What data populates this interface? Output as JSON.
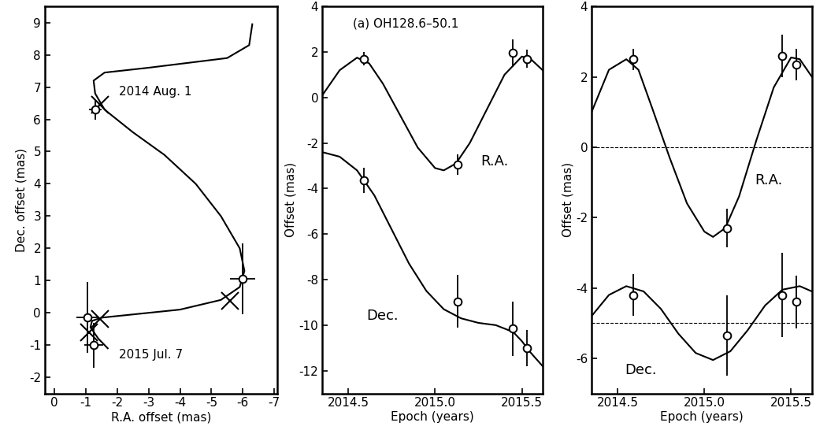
{
  "chart_data": [
    {
      "type": "scatter",
      "x_label": "R.A. offset (mas)",
      "y_label": "Dec. offset (mas)",
      "xlim": [
        0.3,
        -7.1
      ],
      "ylim": [
        -2.5,
        9.5
      ],
      "xticks": [
        0,
        -1,
        -2,
        -3,
        -4,
        -5,
        -6,
        -7
      ],
      "yticks": [
        -2,
        -1,
        0,
        1,
        2,
        3,
        4,
        5,
        6,
        7,
        8,
        9
      ],
      "annotations": [
        "2014 Aug. 1",
        "2015 Jul. 7"
      ],
      "series": [
        {
          "type": "line",
          "color": "#000000",
          "line_style": "solid",
          "x": [
            -6.3,
            -6.2,
            -5.5,
            -3.0,
            -1.6,
            -1.25,
            -1.3,
            -1.6,
            -2.5,
            -3.5,
            -4.5,
            -5.3,
            -5.9,
            -6.05,
            -5.9,
            -5.3,
            -4.0,
            -2.5,
            -1.5,
            -1.2,
            -1.15,
            -1.4,
            -1.7
          ],
          "values": [
            8.95,
            8.3,
            7.9,
            7.6,
            7.45,
            7.2,
            6.8,
            6.3,
            5.6,
            4.9,
            4.0,
            3.0,
            2.0,
            1.3,
            0.8,
            0.4,
            0.1,
            -0.05,
            -0.15,
            -0.25,
            -0.45,
            -0.8,
            -1.1
          ]
        },
        {
          "type": "scatter",
          "color": "#000000",
          "marker": "o",
          "x": [
            -1.3,
            -6.0,
            -1.05,
            -1.25
          ],
          "values": [
            6.3,
            1.05,
            -0.15,
            -1.0
          ],
          "xerr": [
            0.2,
            0.4,
            0.35,
            0.3
          ],
          "yerr": [
            0.3,
            1.1,
            1.1,
            0.7
          ]
        },
        {
          "type": "scatter",
          "color": "#000000",
          "marker": "x",
          "x": [
            -1.45,
            -5.6,
            -1.45,
            -1.1
          ],
          "values": [
            6.45,
            0.38,
            -0.2,
            -0.6
          ]
        }
      ]
    },
    {
      "type": "scatter",
      "x_label": "Epoch (years)",
      "y_label": "Offset (mas)",
      "xlim": [
        2014.35,
        2015.62
      ],
      "ylim": [
        -13,
        4
      ],
      "xticks": [
        {
          "value": 2014.5,
          "label": "2014.5"
        },
        {
          "value": 2015.0,
          "label": "2015.0"
        },
        {
          "value": 2015.5,
          "label": "2015.5"
        }
      ],
      "yticks": [
        -12,
        -10,
        -8,
        -6,
        -4,
        -2,
        0,
        2,
        4
      ],
      "annotations": [
        "(a) OH128.6–50.1",
        "R.A.",
        "Dec."
      ],
      "series": [
        {
          "type": "line",
          "color": "#000000",
          "line_style": "solid",
          "x": [
            2014.35,
            2014.45,
            2014.55,
            2014.62,
            2014.7,
            2014.8,
            2014.9,
            2015.0,
            2015.05,
            2015.12,
            2015.2,
            2015.3,
            2015.4,
            2015.5,
            2015.55,
            2015.62
          ],
          "values": [
            0.1,
            1.2,
            1.75,
            1.5,
            0.6,
            -0.8,
            -2.2,
            -3.1,
            -3.2,
            -2.9,
            -2.0,
            -0.5,
            1.0,
            1.8,
            1.7,
            1.2
          ]
        },
        {
          "type": "line",
          "color": "#000000",
          "line_style": "solid",
          "x": [
            2014.35,
            2014.45,
            2014.55,
            2014.65,
            2014.75,
            2014.85,
            2014.95,
            2015.05,
            2015.15,
            2015.25,
            2015.35,
            2015.45,
            2015.5,
            2015.55,
            2015.62
          ],
          "values": [
            -2.4,
            -2.6,
            -3.2,
            -4.3,
            -5.8,
            -7.3,
            -8.5,
            -9.3,
            -9.7,
            -9.9,
            -10.0,
            -10.3,
            -10.7,
            -11.2,
            -11.8
          ]
        },
        {
          "type": "scatter",
          "color": "#000000",
          "marker": "o",
          "x": [
            2014.59,
            2015.13,
            2015.45,
            2015.53
          ],
          "values": [
            1.7,
            -2.95,
            1.95,
            1.7
          ],
          "yerr": [
            0.3,
            0.45,
            0.6,
            0.4
          ]
        },
        {
          "type": "scatter",
          "color": "#000000",
          "marker": "o",
          "x": [
            2014.59,
            2015.13,
            2015.45,
            2015.53
          ],
          "values": [
            -3.65,
            -8.95,
            -10.15,
            -11.0
          ],
          "yerr": [
            0.55,
            1.15,
            1.2,
            0.8
          ]
        }
      ]
    },
    {
      "type": "scatter",
      "x_label": "Epoch (years)",
      "y_label": "Offset (mas)",
      "xlim": [
        2014.35,
        2015.62
      ],
      "ylim": [
        -7,
        4
      ],
      "xticks": [
        {
          "value": 2014.5,
          "label": "2014.5"
        },
        {
          "value": 2015.0,
          "label": "2015.0"
        },
        {
          "value": 2015.5,
          "label": "2015.5"
        }
      ],
      "yticks": [
        -6,
        -4,
        -2,
        0,
        2,
        4
      ],
      "reference_lines": [
        0,
        -5
      ],
      "annotations": [
        "R.A.",
        "Dec."
      ],
      "series": [
        {
          "type": "line",
          "color": "#000000",
          "line_style": "solid",
          "x": [
            2014.35,
            2014.45,
            2014.55,
            2014.62,
            2014.7,
            2014.8,
            2014.9,
            2015.0,
            2015.05,
            2015.12,
            2015.2,
            2015.3,
            2015.4,
            2015.5,
            2015.55,
            2015.62
          ],
          "values": [
            1.0,
            2.2,
            2.5,
            2.2,
            1.1,
            -0.3,
            -1.6,
            -2.4,
            -2.55,
            -2.3,
            -1.4,
            0.2,
            1.7,
            2.55,
            2.5,
            2.0
          ]
        },
        {
          "type": "line",
          "color": "#000000",
          "line_style": "solid",
          "x": [
            2014.35,
            2014.45,
            2014.55,
            2014.65,
            2014.75,
            2014.85,
            2014.95,
            2015.05,
            2015.15,
            2015.25,
            2015.35,
            2015.45,
            2015.55,
            2015.62
          ],
          "values": [
            -4.8,
            -4.2,
            -3.95,
            -4.1,
            -4.6,
            -5.3,
            -5.85,
            -6.05,
            -5.8,
            -5.2,
            -4.5,
            -4.05,
            -3.95,
            -4.1
          ]
        },
        {
          "type": "scatter",
          "color": "#000000",
          "marker": "o",
          "x": [
            2014.59,
            2015.13,
            2015.45,
            2015.53
          ],
          "values": [
            2.5,
            -2.3,
            2.6,
            2.35
          ],
          "yerr": [
            0.3,
            0.55,
            0.6,
            0.45
          ]
        },
        {
          "type": "scatter",
          "color": "#000000",
          "marker": "o",
          "x": [
            2014.59,
            2015.13,
            2015.45,
            2015.53
          ],
          "values": [
            -4.2,
            -5.35,
            -4.2,
            -4.4
          ],
          "yerr": [
            0.6,
            1.15,
            1.2,
            0.75
          ]
        }
      ]
    }
  ]
}
